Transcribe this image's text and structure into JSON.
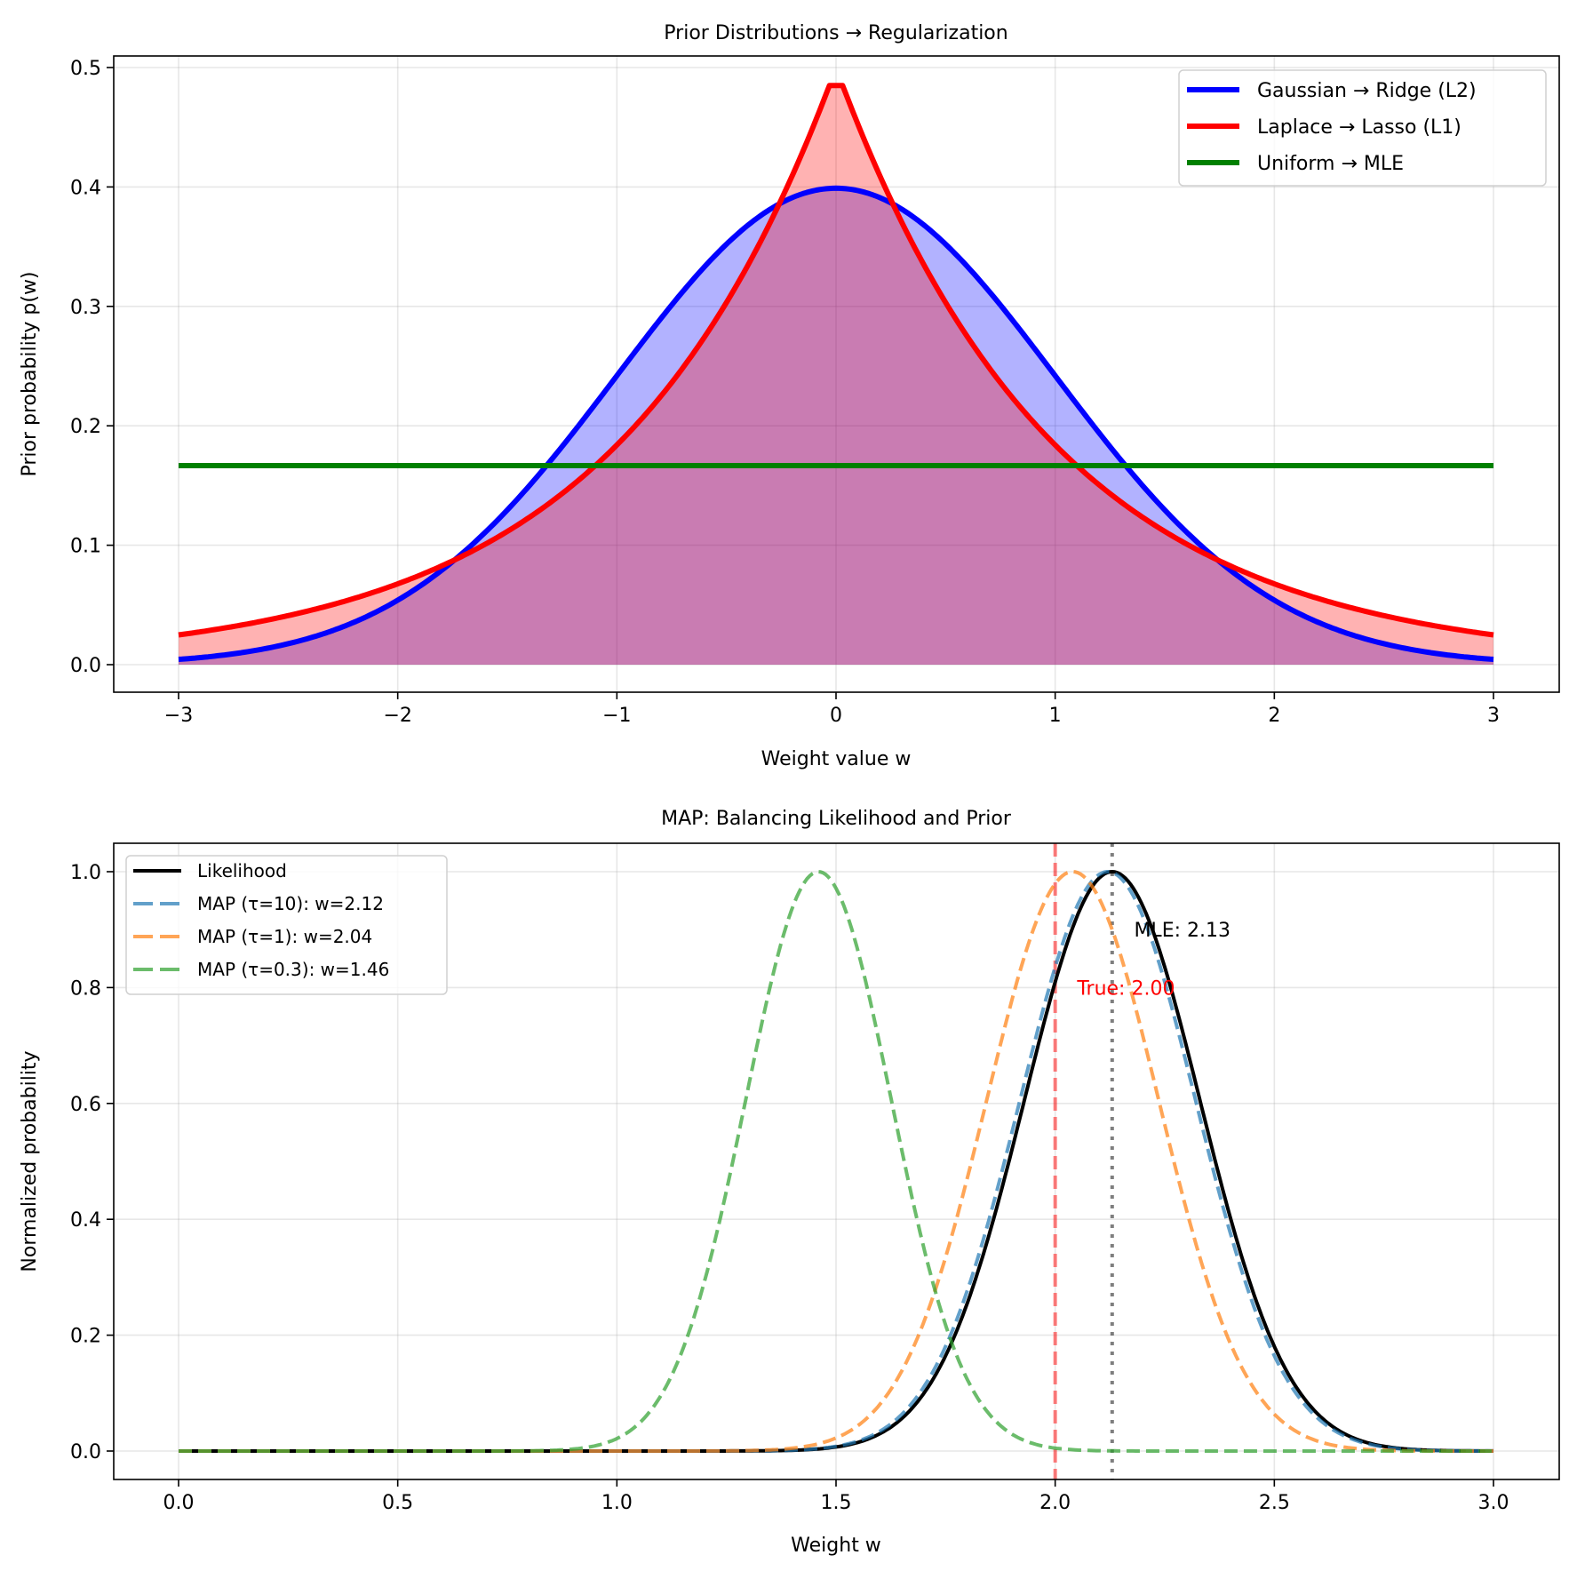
{
  "chart_data": [
    {
      "type": "line",
      "title": "Prior Distributions → Regularization",
      "xlabel": "Weight value w",
      "ylabel": "Prior probability p(w)",
      "xlim": [
        -3.3,
        3.3
      ],
      "ylim": [
        -0.024,
        0.51
      ],
      "xticks": [
        -3,
        -2,
        -1,
        0,
        1,
        2,
        3
      ],
      "xtick_labels": [
        "−3",
        "−2",
        "−1",
        "0",
        "1",
        "2",
        "3"
      ],
      "yticks": [
        0.0,
        0.1,
        0.2,
        0.3,
        0.4,
        0.5
      ],
      "ytick_labels": [
        "0.0",
        "0.1",
        "0.2",
        "0.3",
        "0.4",
        "0.5"
      ],
      "grid": true,
      "legend_position": "top-right",
      "x_range": [
        -3,
        3
      ],
      "series": [
        {
          "name": "Gaussian → Ridge (L2)",
          "kind": "gaussian",
          "mean": 0,
          "std": 1,
          "color": "#0000ff",
          "fill": true,
          "fill_color": "#0000ff",
          "fill_alpha": 0.3
        },
        {
          "name": "Laplace → Lasso (L1)",
          "kind": "laplace",
          "loc": 0,
          "scale": 1,
          "peak_sampled": 0.485,
          "color": "#ff0000",
          "fill": true,
          "fill_color": "#ff0000",
          "fill_alpha": 0.3
        },
        {
          "name": "Uniform → MLE",
          "kind": "constant",
          "value": 0.1667,
          "color": "#008000",
          "fill": false
        }
      ],
      "sample_points": {
        "x": [
          -3,
          -2,
          -1,
          0,
          1,
          2,
          3
        ],
        "gaussian": [
          0.004,
          0.054,
          0.242,
          0.399,
          0.242,
          0.054,
          0.004
        ],
        "laplace": [
          0.025,
          0.068,
          0.184,
          0.485,
          0.184,
          0.068,
          0.025
        ],
        "uniform": [
          0.167,
          0.167,
          0.167,
          0.167,
          0.167,
          0.167,
          0.167
        ]
      }
    },
    {
      "type": "line",
      "title": "MAP: Balancing Likelihood and Prior",
      "xlabel": "Weight w",
      "ylabel": "Normalized probability",
      "xlim": [
        -0.15,
        3.15
      ],
      "ylim": [
        -0.05,
        1.05
      ],
      "xticks": [
        0.0,
        0.5,
        1.0,
        1.5,
        2.0,
        2.5,
        3.0
      ],
      "xtick_labels": [
        "0.0",
        "0.5",
        "1.0",
        "1.5",
        "2.0",
        "2.5",
        "3.0"
      ],
      "yticks": [
        0.0,
        0.2,
        0.4,
        0.6,
        0.8,
        1.0
      ],
      "ytick_labels": [
        "0.0",
        "0.2",
        "0.4",
        "0.6",
        "0.8",
        "1.0"
      ],
      "grid": true,
      "legend_position": "top-left",
      "x_range": [
        0,
        3
      ],
      "series": [
        {
          "name": "Likelihood",
          "kind": "gaussian_normalized",
          "mean": 2.13,
          "std": 0.2,
          "color": "#000000",
          "style": "solid"
        },
        {
          "name": "MAP (τ=10): w=2.12",
          "kind": "gaussian_normalized",
          "mean": 2.12,
          "std": 0.2,
          "color": "#1f77b4",
          "alpha": 0.7,
          "style": "dashed"
        },
        {
          "name": "MAP (τ=1): w=2.04",
          "kind": "gaussian_normalized",
          "mean": 2.04,
          "std": 0.196,
          "color": "#ff7f0e",
          "alpha": 0.7,
          "style": "dashed"
        },
        {
          "name": "MAP (τ=0.3): w=1.46",
          "kind": "gaussian_normalized",
          "mean": 1.46,
          "std": 0.166,
          "color": "#2ca02c",
          "alpha": 0.7,
          "style": "dashed"
        }
      ],
      "vlines": [
        {
          "name": "true-weight-line",
          "x": 2.0,
          "color": "#ff0000",
          "alpha": 0.5,
          "style": "dashed"
        },
        {
          "name": "mle-line",
          "x": 2.13,
          "color": "#000000",
          "alpha": 0.5,
          "style": "dotted"
        }
      ],
      "annotations": [
        {
          "name": "mle-annotation",
          "text": "MLE: 2.13",
          "x": 2.18,
          "y": 0.9,
          "color": "#000000"
        },
        {
          "name": "true-annotation",
          "text": "True: 2.00",
          "x": 2.05,
          "y": 0.8,
          "color": "#ff0000"
        }
      ]
    }
  ]
}
